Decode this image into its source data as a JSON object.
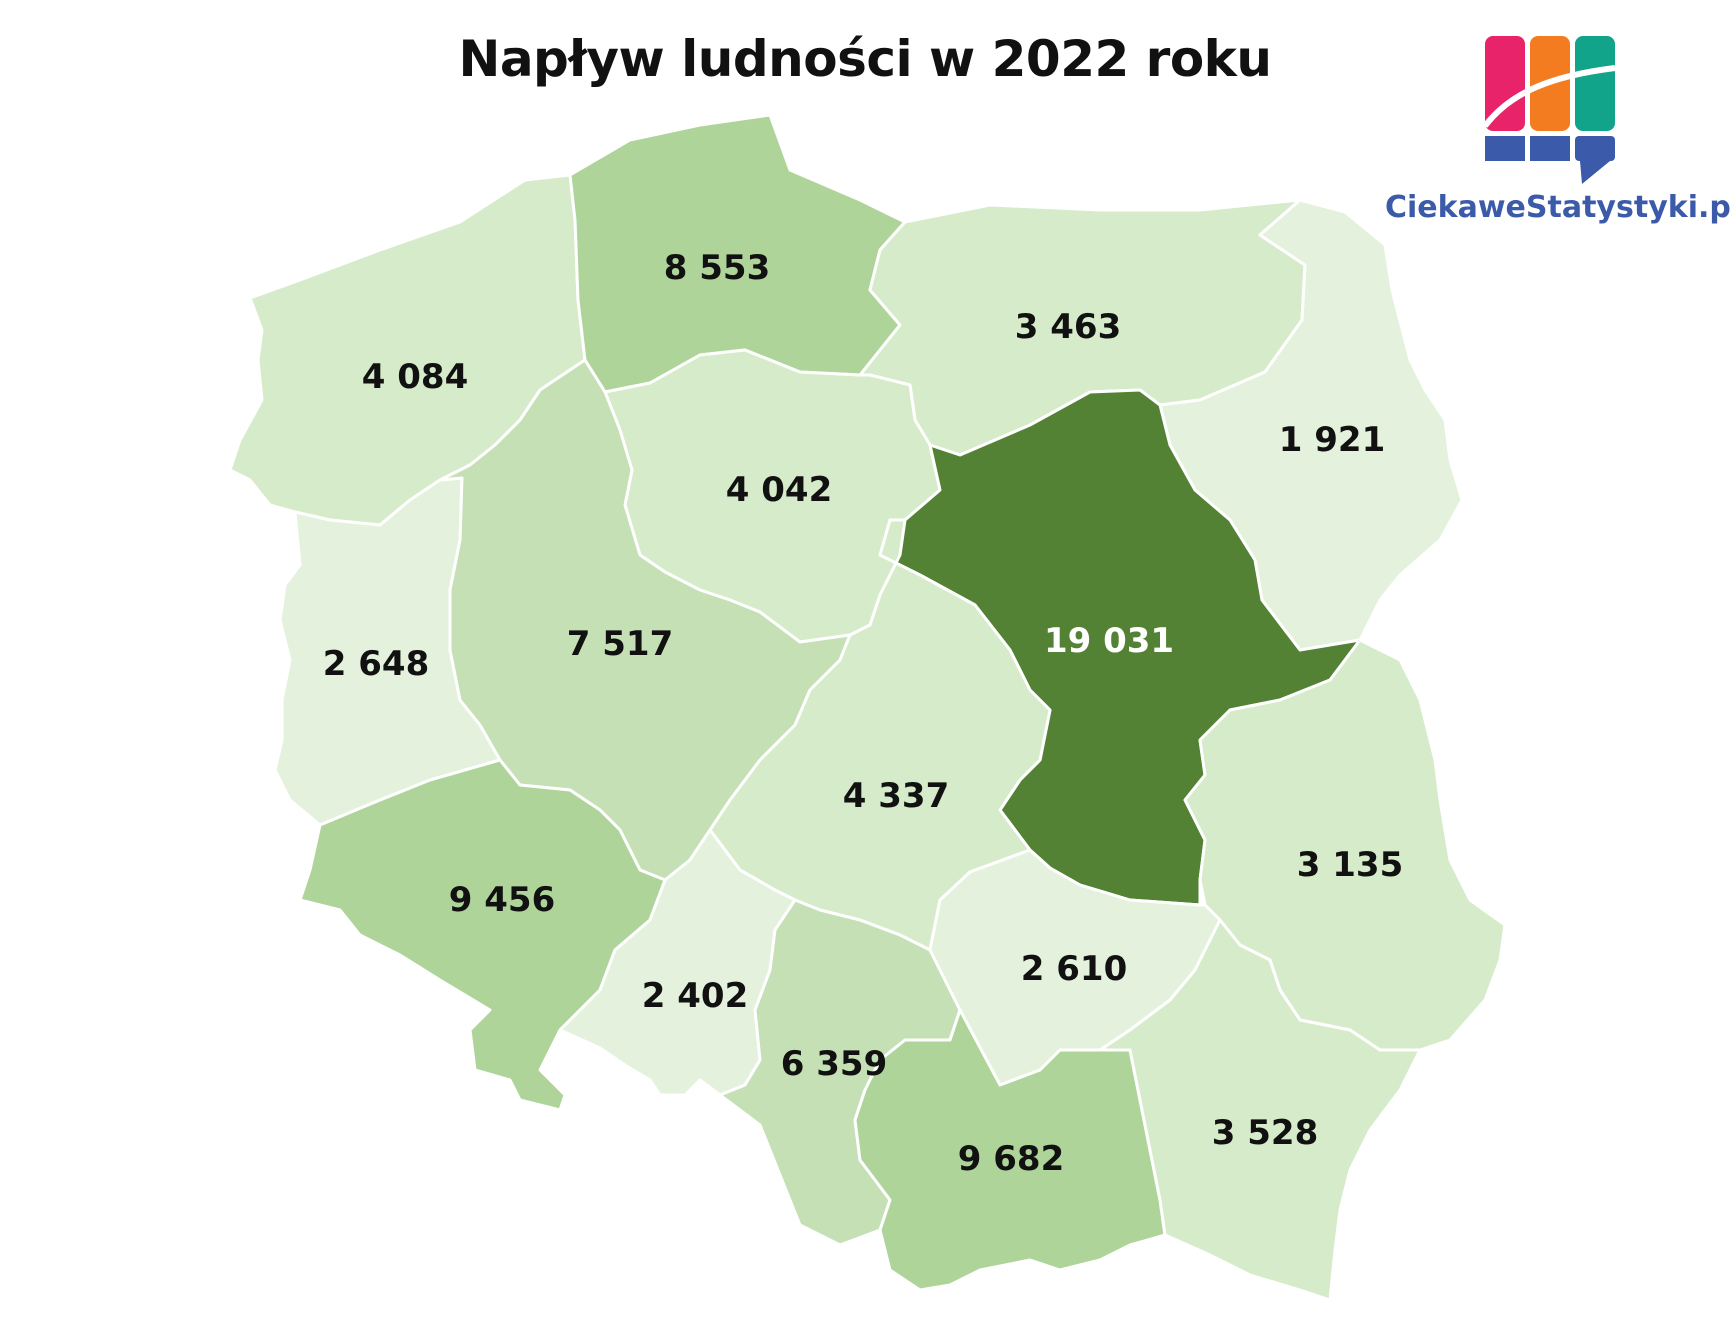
{
  "title": "Napływ ludności w 2022 roku",
  "brand": {
    "name": "CiekaweStatystyki.pl",
    "colors": {
      "pink": "#e8236a",
      "orange": "#f47c20",
      "teal": "#12a48a",
      "blue": "#3b5aa9"
    }
  },
  "map": {
    "colors": {
      "dark": "#548235",
      "medium": "#aed49a",
      "medium_light": "#c4e0b4",
      "light": "#d6ebca",
      "lightest": "#e4f1dc"
    },
    "regions": [
      {
        "id": "zachodniopomorskie",
        "value": "4 084",
        "shade": "light"
      },
      {
        "id": "pomorskie",
        "value": "8 553",
        "shade": "medium"
      },
      {
        "id": "warminsko-mazurskie",
        "value": "3 463",
        "shade": "light"
      },
      {
        "id": "podlaskie",
        "value": "1 921",
        "shade": "lightest"
      },
      {
        "id": "kujawsko-pomorskie",
        "value": "4 042",
        "shade": "light"
      },
      {
        "id": "lubuskie",
        "value": "2 648",
        "shade": "lightest"
      },
      {
        "id": "wielkopolskie",
        "value": "7 517",
        "shade": "medium_light"
      },
      {
        "id": "mazowieckie",
        "value": "19 031",
        "shade": "dark"
      },
      {
        "id": "lodzkie",
        "value": "4 337",
        "shade": "light"
      },
      {
        "id": "lubelskie",
        "value": "3 135",
        "shade": "light"
      },
      {
        "id": "dolnoslaskie",
        "value": "9 456",
        "shade": "medium"
      },
      {
        "id": "opolskie",
        "value": "2 402",
        "shade": "lightest"
      },
      {
        "id": "slaskie",
        "value": "6 359",
        "shade": "medium_light"
      },
      {
        "id": "swietokrzyskie",
        "value": "2 610",
        "shade": "lightest"
      },
      {
        "id": "malopolskie",
        "value": "9 682",
        "shade": "medium"
      },
      {
        "id": "podkarpackie",
        "value": "3 528",
        "shade": "light"
      }
    ]
  }
}
